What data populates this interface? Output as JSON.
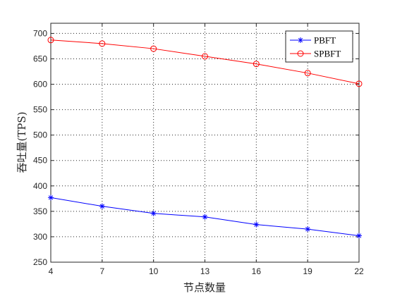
{
  "chart_data": {
    "type": "line",
    "title": "",
    "xlabel": "节点数量",
    "ylabel": "吞吐量(TPS)",
    "x": [
      4,
      7,
      10,
      13,
      16,
      19,
      22
    ],
    "xlim": [
      4,
      22
    ],
    "ylim": [
      250,
      720
    ],
    "xticks": [
      "4",
      "7",
      "10",
      "13",
      "16",
      "19",
      "22"
    ],
    "yticks": [
      "250",
      "300",
      "350",
      "400",
      "450",
      "500",
      "550",
      "600",
      "650",
      "700"
    ],
    "grid": true,
    "legend_position": "top-right",
    "series": [
      {
        "name": "PBFT",
        "color": "#0000ff",
        "marker": "star",
        "values": [
          377,
          360,
          346,
          339,
          324,
          315,
          302
        ]
      },
      {
        "name": "SPBFT",
        "color": "#ff0000",
        "marker": "circle",
        "values": [
          687,
          680,
          670,
          655,
          640,
          622,
          601
        ]
      }
    ]
  }
}
